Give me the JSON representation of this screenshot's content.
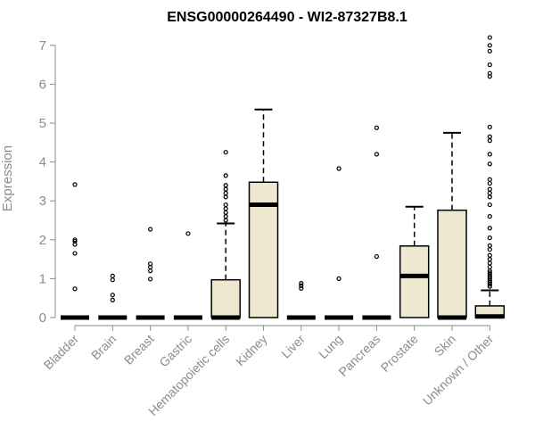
{
  "chart_data": {
    "type": "boxplot",
    "title": "ENSG00000264490 - WI2-87327B8.1",
    "ylabel": "Expression",
    "xlabel": "",
    "ylim": [
      0,
      7
    ],
    "yticks": [
      0,
      1,
      2,
      3,
      4,
      5,
      6,
      7
    ],
    "grid": false,
    "colors": {
      "box_fill": "#efe8d0",
      "stroke": "#000000",
      "axis": "#8c8c8c"
    },
    "categories": [
      "Bladder",
      "Brain",
      "Breast",
      "Gastric",
      "Hematopoietic cells",
      "Kidney",
      "Liver",
      "Lung",
      "Pancreas",
      "Prostate",
      "Skin",
      "Unknown / Other"
    ],
    "boxes": [
      {
        "q1": 0,
        "median": 0,
        "q3": 0,
        "whisker_low": 0,
        "whisker_high": 0,
        "outliers": [
          0.74,
          1.65,
          1.88,
          1.96,
          2.0,
          3.42
        ]
      },
      {
        "q1": 0,
        "median": 0,
        "q3": 0,
        "whisker_low": 0,
        "whisker_high": 0,
        "outliers": [
          0.45,
          0.58,
          0.97,
          1.07
        ]
      },
      {
        "q1": 0,
        "median": 0,
        "q3": 0,
        "whisker_low": 0,
        "whisker_high": 0,
        "outliers": [
          0.99,
          1.2,
          1.3,
          1.38,
          2.27
        ]
      },
      {
        "q1": 0,
        "median": 0,
        "q3": 0,
        "whisker_low": 0,
        "whisker_high": 0,
        "outliers": [
          2.16
        ]
      },
      {
        "q1": 0,
        "median": 0,
        "q3": 0.97,
        "whisker_low": 0,
        "whisker_high": 2.42,
        "outliers": [
          2.5,
          2.6,
          2.7,
          2.8,
          2.9,
          3.1,
          3.2,
          3.3,
          3.4,
          3.65,
          4.25
        ]
      },
      {
        "q1": 0,
        "median": 2.9,
        "q3": 3.48,
        "whisker_low": 0,
        "whisker_high": 5.35,
        "outliers": []
      },
      {
        "q1": 0,
        "median": 0,
        "q3": 0,
        "whisker_low": 0,
        "whisker_high": 0,
        "outliers": [
          0.75,
          0.82,
          0.88
        ]
      },
      {
        "q1": 0,
        "median": 0,
        "q3": 0,
        "whisker_low": 0,
        "whisker_high": 0,
        "outliers": [
          1.0,
          3.83
        ]
      },
      {
        "q1": 0,
        "median": 0,
        "q3": 0,
        "whisker_low": 0,
        "whisker_high": 0,
        "outliers": [
          1.57,
          4.2,
          4.88
        ]
      },
      {
        "q1": 0,
        "median": 1.07,
        "q3": 1.84,
        "whisker_low": 0,
        "whisker_high": 2.85,
        "outliers": []
      },
      {
        "q1": 0,
        "median": 0,
        "q3": 2.76,
        "whisker_low": 0,
        "whisker_high": 4.75,
        "outliers": []
      },
      {
        "q1": 0,
        "median": 0.03,
        "q3": 0.3,
        "whisker_low": 0,
        "whisker_high": 0.7,
        "outliers": [
          0.8,
          0.85,
          0.9,
          0.95,
          1.0,
          1.05,
          1.1,
          1.15,
          1.2,
          1.3,
          1.4,
          1.5,
          1.6,
          1.75,
          1.85,
          2.05,
          2.3,
          2.6,
          2.9,
          3.1,
          3.2,
          3.3,
          3.45,
          3.55,
          3.95,
          4.2,
          4.55,
          4.65,
          4.9,
          6.2,
          6.28,
          6.5,
          6.85,
          7.0,
          7.2
        ]
      }
    ]
  }
}
